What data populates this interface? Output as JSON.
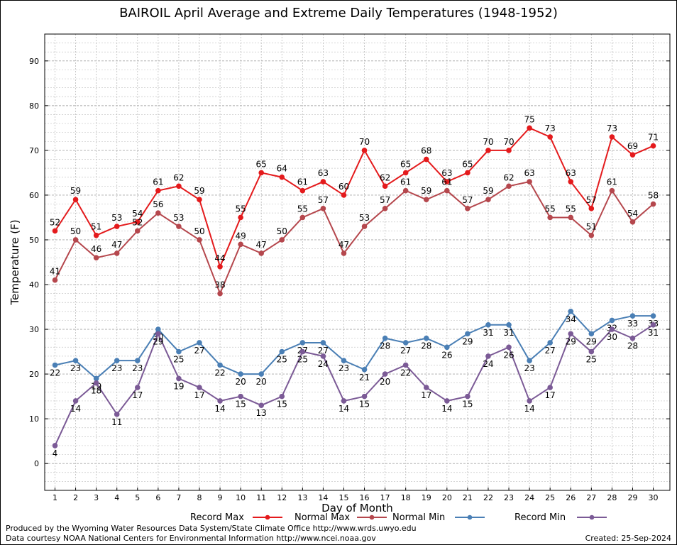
{
  "chart_data": {
    "type": "line",
    "title": "BAIROIL April Average and Extreme Daily Temperatures (1948-1952)",
    "xlabel": "Day of Month",
    "ylabel": "Temperature (F)",
    "ylim": [
      -6,
      96
    ],
    "yticks": [
      0,
      10,
      20,
      30,
      40,
      50,
      60,
      70,
      80,
      90
    ],
    "grid": true,
    "legend_position": "bottom",
    "x": [
      1,
      2,
      3,
      4,
      5,
      6,
      7,
      8,
      9,
      10,
      11,
      12,
      13,
      14,
      15,
      16,
      17,
      18,
      19,
      20,
      21,
      22,
      23,
      24,
      25,
      26,
      27,
      28,
      29,
      30
    ],
    "series": [
      {
        "name": "Record Max",
        "color": "#e41a1c",
        "values": [
          52,
          59,
          51,
          53,
          54,
          61,
          62,
          59,
          44,
          55,
          65,
          64,
          61,
          63,
          60,
          70,
          62,
          65,
          68,
          63,
          65,
          70,
          70,
          75,
          73,
          63,
          57,
          73,
          69,
          71
        ]
      },
      {
        "name": "Normal Max",
        "color": "#b5474d",
        "values": [
          41,
          50,
          46,
          47,
          52,
          56,
          53,
          50,
          38,
          49,
          47,
          50,
          55,
          57,
          47,
          53,
          57,
          61,
          59,
          61,
          57,
          59,
          62,
          63,
          55,
          55,
          51,
          61,
          54,
          58
        ]
      },
      {
        "name": "Normal Min",
        "color": "#4a7fb5",
        "values": [
          22,
          23,
          19,
          23,
          23,
          30,
          25,
          27,
          22,
          20,
          20,
          25,
          27,
          27,
          23,
          21,
          28,
          27,
          28,
          26,
          29,
          31,
          31,
          23,
          27,
          34,
          29,
          32,
          33,
          33
        ]
      },
      {
        "name": "Record Min",
        "color": "#7b5a96",
        "values": [
          4,
          14,
          18,
          11,
          17,
          29,
          19,
          17,
          14,
          15,
          13,
          15,
          25,
          24,
          14,
          15,
          20,
          22,
          17,
          14,
          15,
          24,
          26,
          14,
          17,
          29,
          25,
          30,
          28,
          31
        ]
      }
    ]
  },
  "footer": {
    "line1": "Produced by the Wyoming Water Resources Data System/State Climate Office http://www.wrds.uwyo.edu",
    "line2": "Data courtesy NOAA National Centers for Environmental Information http://www.ncei.noaa.gov",
    "created": "Created:  25-Sep-2024"
  }
}
